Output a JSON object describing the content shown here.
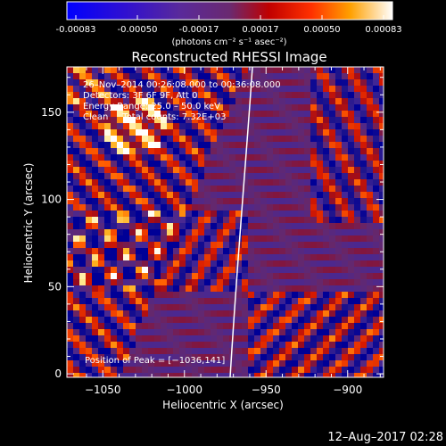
{
  "chart_data": {
    "type": "heatmap",
    "title": "Reconstructed RHESSI Image",
    "colorbar": {
      "ticks": [
        "-0.00083",
        "-0.00050",
        "-0.00017",
        "0.00017",
        "0.00050",
        "0.00083"
      ],
      "unit_label": "(photons cm⁻² s⁻¹ asec⁻²)",
      "colormap": "blue-purple-red-orange-yellow-white"
    },
    "xlabel": "Heliocentric X (arcsec)",
    "ylabel": "Heliocentric Y (arcsec)",
    "xlim": [
      -1072,
      -878
    ],
    "ylim": [
      -2,
      176
    ],
    "xticks": [
      {
        "value": -1050,
        "label": "−1050"
      },
      {
        "value": -1000,
        "label": "−1000"
      },
      {
        "value": -950,
        "label": "−950"
      },
      {
        "value": -900,
        "label": "−900"
      }
    ],
    "yticks": [
      {
        "value": 0,
        "label": "0"
      },
      {
        "value": 50,
        "label": "50"
      },
      {
        "value": 100,
        "label": "100"
      },
      {
        "value": 150,
        "label": "150"
      }
    ],
    "annotations": [
      "26–Nov–2014 00:26:08.000 to 00:36:08.000",
      "Detectors: 3F 6F 9F, Att 0",
      "Energy Range: 25.0 – 50.0 keV",
      "Clean     Total counts: 7.32E+03"
    ],
    "peak_text": "Position of Peak = [−1036,141]",
    "limb": "solar limb drawn in white"
  },
  "footer": {
    "timestamp": "12–Aug–2017 02:28"
  }
}
